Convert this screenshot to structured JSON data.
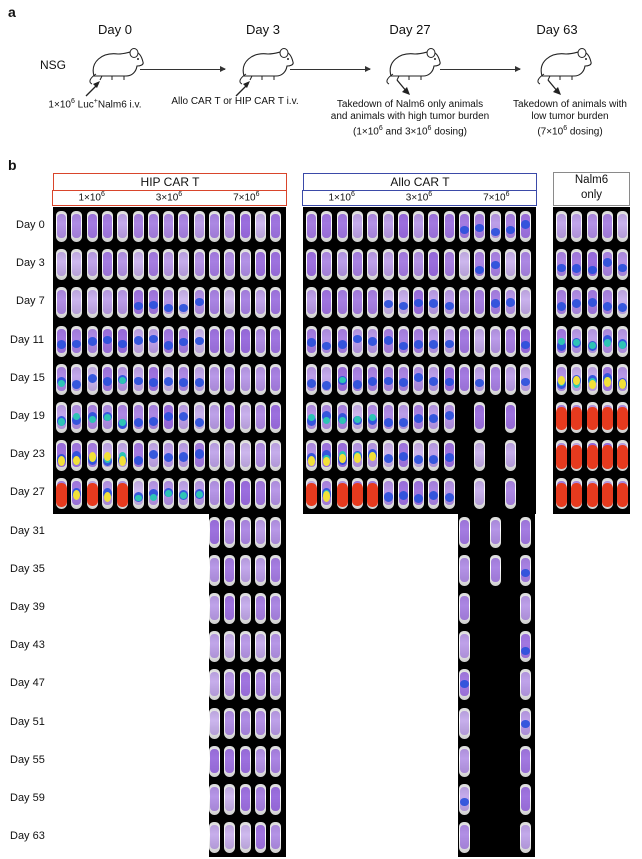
{
  "panel_a": {
    "letter": "a",
    "strain_label": "NSG",
    "timepoints": [
      {
        "day": "Day 0",
        "caption_html": "1×10<sup>6</sup> Luc<sup>+</sup>Nalm6 i.v."
      },
      {
        "day": "Day 3",
        "caption_html": "Allo CAR T or HIP CAR T i.v."
      },
      {
        "day": "Day 27",
        "caption_html": "Takedown of Nalm6 only animals<br>and animals with high tumor burden<br>(1×10<sup>6</sup> and 3×10<sup>6</sup> dosing)"
      },
      {
        "day": "Day 63",
        "caption_html": "Takedown of animals with<br>low tumor burden<br>(7×10<sup>6</sup> dosing)"
      }
    ]
  },
  "panel_b": {
    "letter": "b",
    "groups": [
      {
        "title": "HIP CAR T",
        "color": "#d9452b",
        "doses_html": [
          "1×10<sup>6</sup>",
          "3×10<sup>6</sup>",
          "7×10<sup>6</sup>"
        ]
      },
      {
        "title": "Allo CAR T",
        "color": "#3b4aa8",
        "doses_html": [
          "1×10<sup>6</sup>",
          "3×10<sup>6</sup>",
          "7×10<sup>6</sup>"
        ]
      },
      {
        "title_html": "Nalm6<br>only",
        "color": "#8a8a8a"
      }
    ],
    "days": [
      "Day 0",
      "Day 3",
      "Day 7",
      "Day 11",
      "Day 15",
      "Day 19",
      "Day 23",
      "Day 27",
      "Day 31",
      "Day 35",
      "Day 39",
      "Day 43",
      "Day 47",
      "Day 51",
      "Day 55",
      "Day 59",
      "Day 63"
    ]
  }
}
